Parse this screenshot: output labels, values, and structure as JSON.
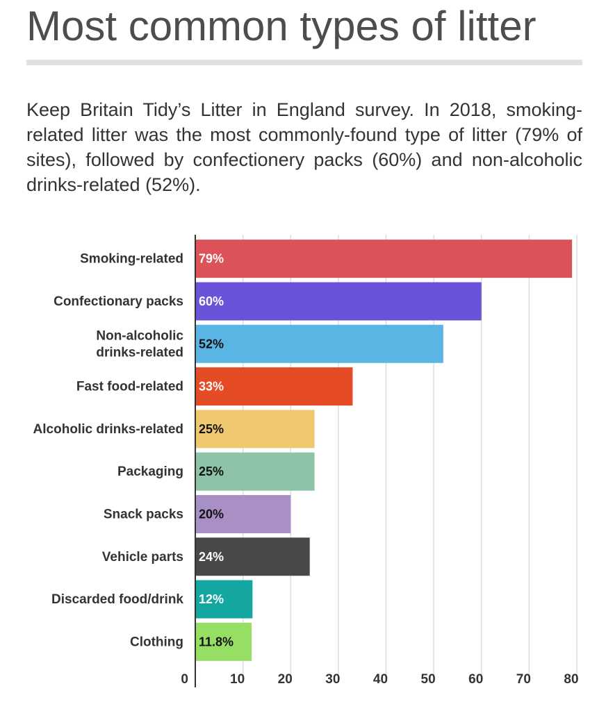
{
  "title": "Most common types of litter",
  "subtitle": "Keep Britain Tidy’s Litter in England survey. In 2018, smoking-related litter was the most commonly-found type of litter (79% of sites), followed by confectionery packs (60%) and non-alcoholic drinks-related (52%).",
  "chart_data": {
    "type": "bar",
    "orientation": "horizontal",
    "categories": [
      "Smoking-related",
      "Confectionary packs",
      "Non-alcoholic drinks-related",
      "Fast food-related",
      "Alcoholic drinks-related",
      "Packaging",
      "Snack packs",
      "Vehicle parts",
      "Discarded food/drink",
      "Clothing"
    ],
    "category_lines": [
      [
        "Smoking-related"
      ],
      [
        "Confectionary packs"
      ],
      [
        "Non-alcoholic",
        "drinks-related"
      ],
      [
        "Fast food-related"
      ],
      [
        "Alcoholic drinks-related"
      ],
      [
        "Packaging"
      ],
      [
        "Snack packs"
      ],
      [
        "Vehicle parts"
      ],
      [
        "Discarded food/drink"
      ],
      [
        "Clothing"
      ]
    ],
    "values": [
      79,
      60,
      52,
      33,
      25,
      25,
      20,
      24,
      12,
      11.8
    ],
    "data_labels": [
      "79%",
      "60%",
      "52%",
      "33%",
      "25%",
      "25%",
      "20%",
      "24%",
      "12%",
      "11.8%"
    ],
    "colors": [
      "#dd5159",
      "#6a53d8",
      "#5ab5e4",
      "#e54c25",
      "#f0c870",
      "#8dc3a6",
      "#a88fc6",
      "#484848",
      "#14a7a0",
      "#97de64"
    ],
    "label_colors": [
      "#ffffff",
      "#ffffff",
      "#111111",
      "#ffffff",
      "#111111",
      "#111111",
      "#111111",
      "#ffffff",
      "#ffffff",
      "#111111"
    ],
    "xlim": [
      0,
      80
    ],
    "xticks": [
      0,
      10,
      20,
      30,
      40,
      50,
      60,
      70,
      80
    ],
    "grid": true,
    "xlabel": "",
    "ylabel": ""
  }
}
